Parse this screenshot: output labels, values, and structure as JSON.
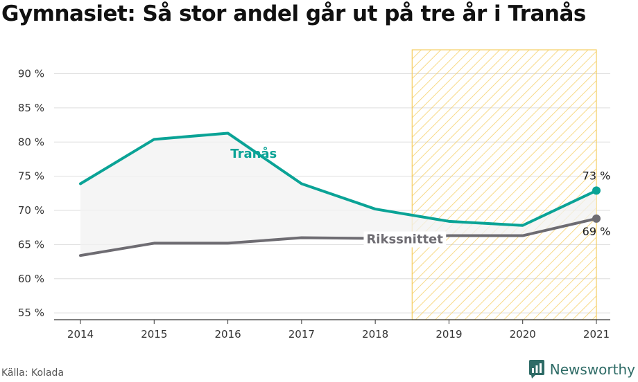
{
  "title": "Gymnasiet: Så stor andel går ut på tre år i Tranås",
  "source": "Källa: Kolada",
  "brand": "Newsworthy",
  "colors": {
    "tranas": "#0aa396",
    "riket": "#6e6c72",
    "highlight_stroke": "#f5cd60",
    "grid": "#dddddd",
    "fill": "#f2f2f2"
  },
  "chart_data": {
    "type": "line",
    "categories": [
      "2014",
      "2015",
      "2016",
      "2017",
      "2018",
      "2019",
      "2020",
      "2021"
    ],
    "series": [
      {
        "name": "Tranås",
        "values": [
          73.9,
          80.4,
          81.3,
          73.9,
          70.2,
          68.4,
          67.8,
          72.9
        ],
        "end_label": "73 %"
      },
      {
        "name": "Rikssnittet",
        "values": [
          63.4,
          65.2,
          65.2,
          66.0,
          65.9,
          66.3,
          66.3,
          68.8
        ],
        "end_label": "69 %"
      }
    ],
    "yticks": [
      "55 %",
      "60 %",
      "65 %",
      "70 %",
      "75 %",
      "80 %",
      "85 %",
      "90 %"
    ],
    "ylim": [
      54,
      93.5
    ],
    "highlight_range": [
      "2018.5",
      "2021"
    ],
    "grid": true
  }
}
